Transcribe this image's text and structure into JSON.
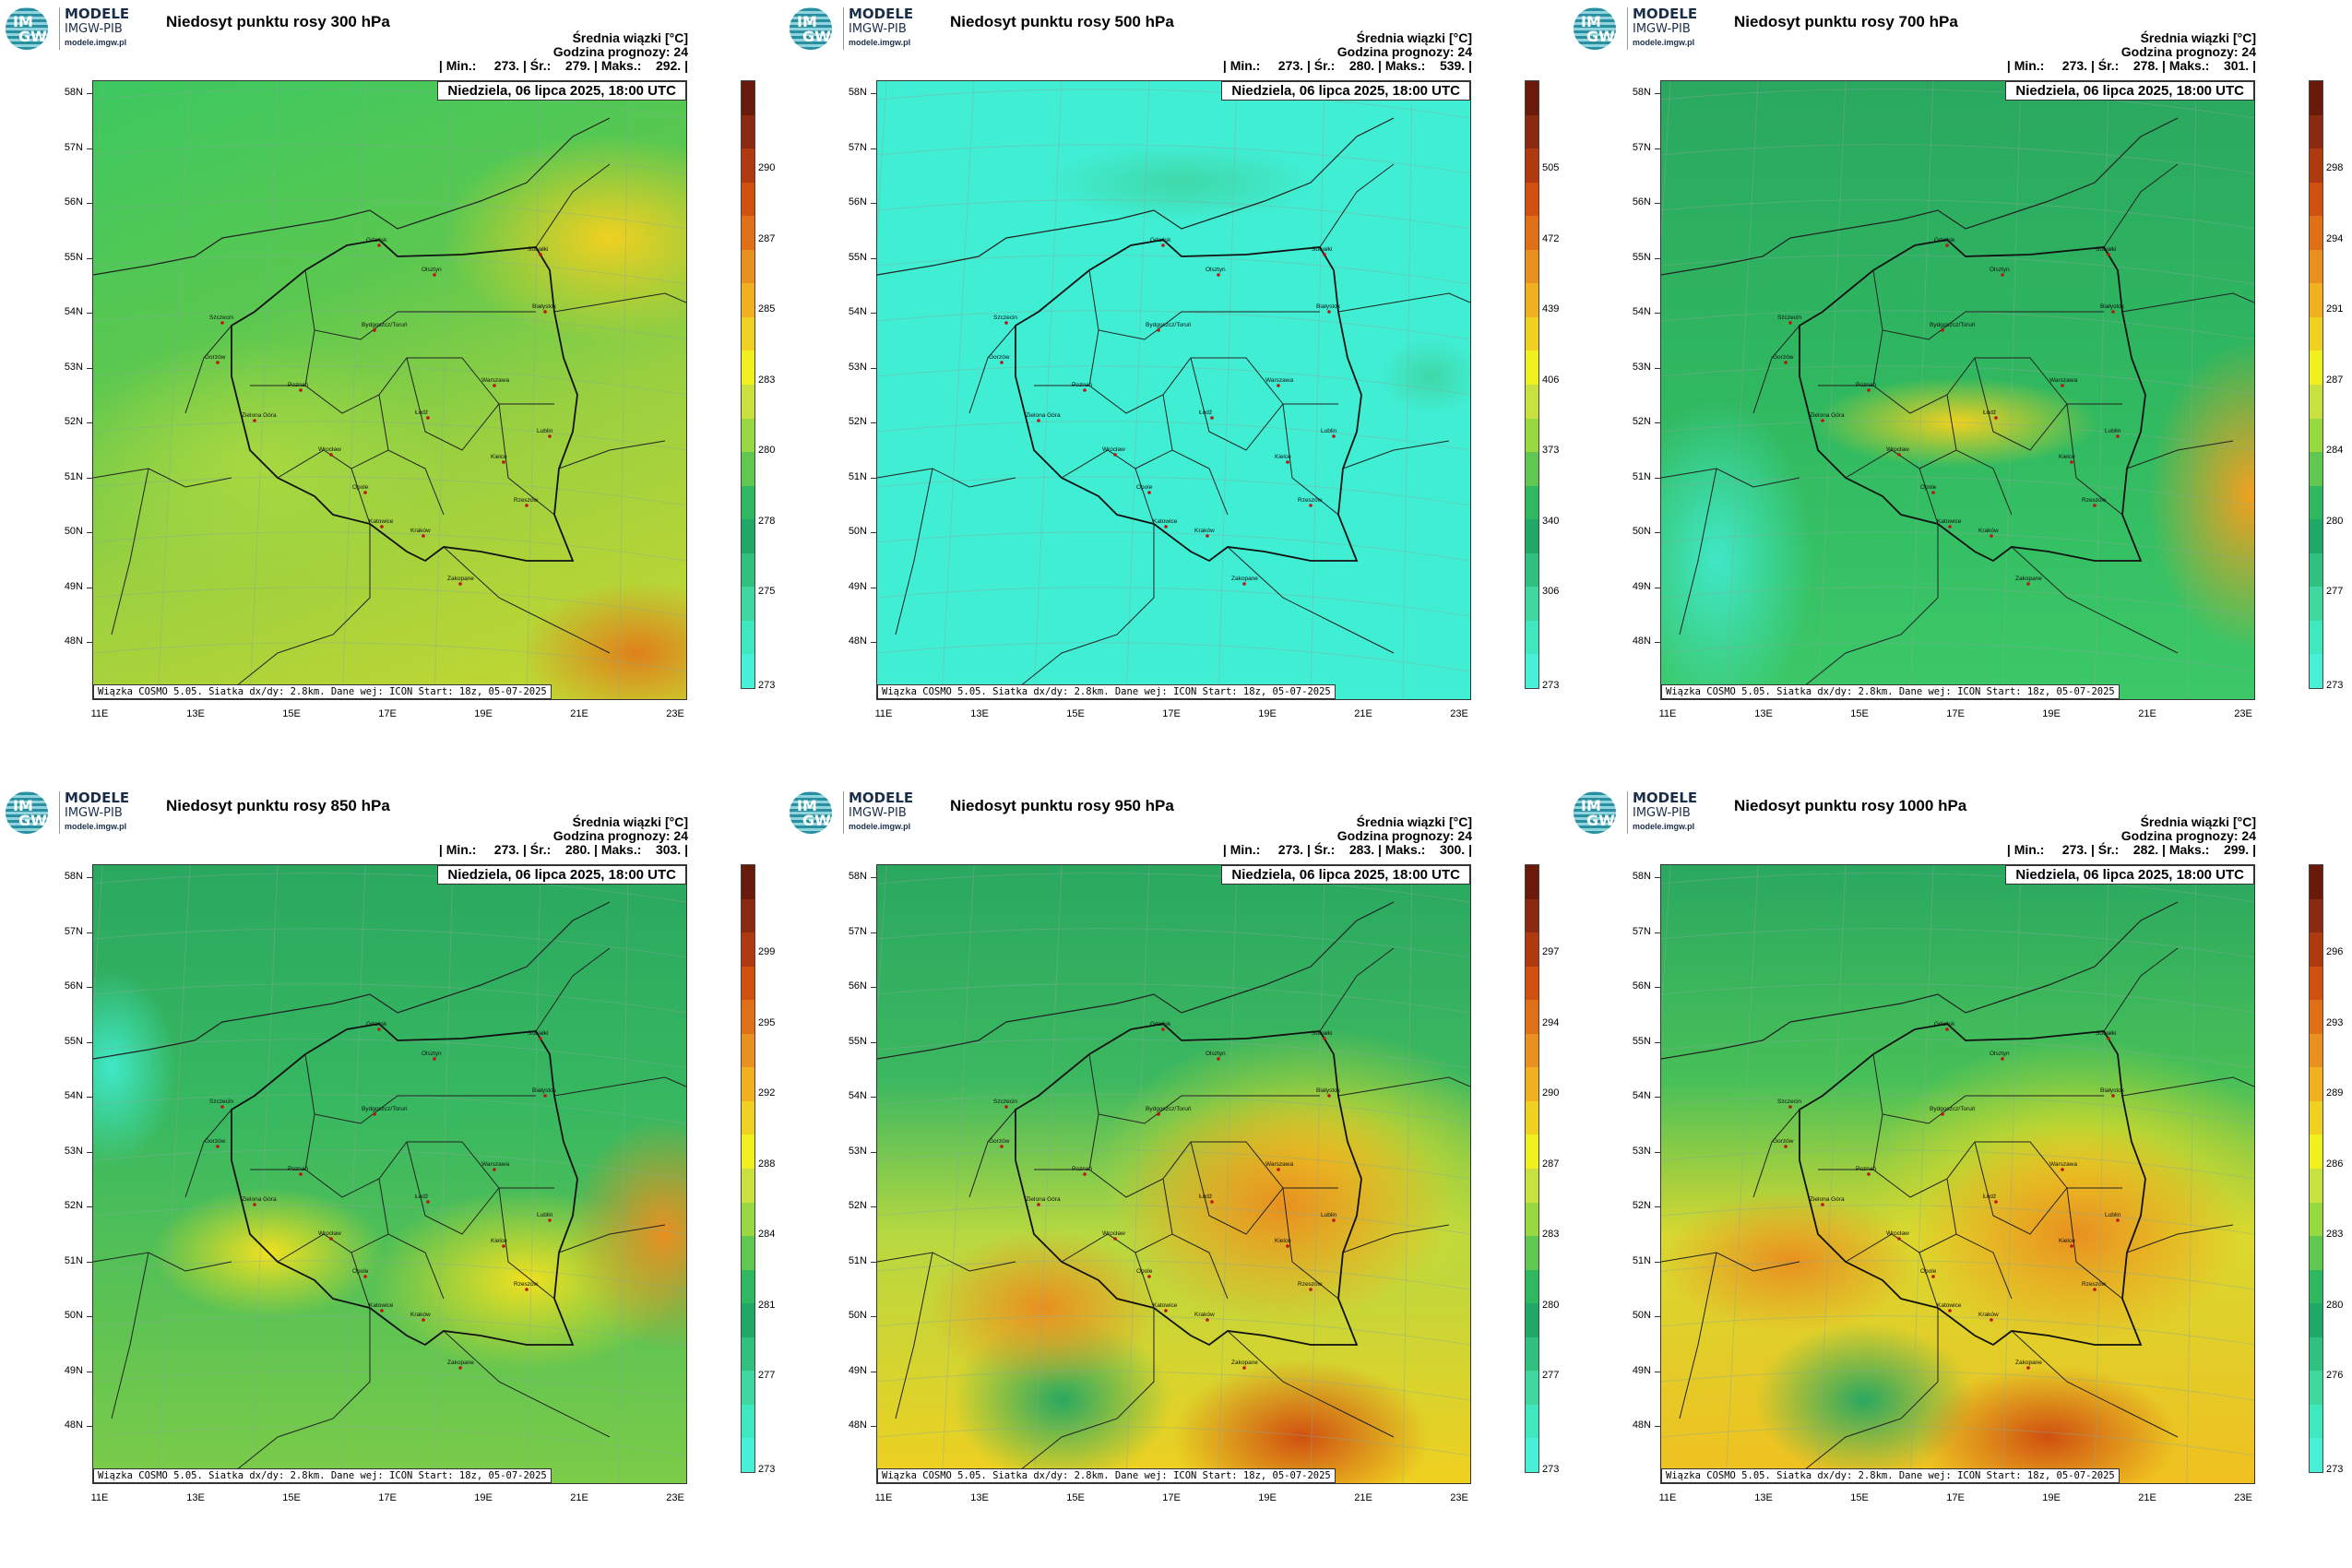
{
  "logo": {
    "title": "MODELE",
    "subtitle": "IMGW-PIB",
    "url": "modele.imgw.pl",
    "mark_top": "IM",
    "mark_bottom": "GW"
  },
  "common": {
    "info_line1": "Średnia wiązki [°C]",
    "info_line2": "Godzina prognozy: 24",
    "date": "Niedziela, 06 lipca 2025, 18:00 UTC",
    "footer": "Wiązka COSMO 5.05. Siatka dx/dy: 2.8km. Dane wej: ICON Start: 18z, 05-07-2025",
    "lat_labels": [
      "58N",
      "57N",
      "56N",
      "55N",
      "54N",
      "53N",
      "52N",
      "51N",
      "50N",
      "49N",
      "48N"
    ],
    "lon_labels": [
      "11E",
      "13E",
      "15E",
      "17E",
      "19E",
      "21E",
      "23E"
    ],
    "cities": [
      "Gdańsk",
      "Olsztyn",
      "Suwałki",
      "Białystok",
      "Szczecin",
      "Bydgoszcz/Toruń",
      "Gorzów",
      "Poznań",
      "Warszawa",
      "Zielona Góra",
      "Łódź",
      "Lublin",
      "Wrocław",
      "Kielce",
      "Opole",
      "Rzeszów",
      "Katowice",
      "Kraków",
      "Zakopane"
    ]
  },
  "panels": [
    {
      "title": "Niedosyt punktu rosy 300 hPa",
      "stats": "| Min.:     273. | Śr.:    279. | Maks.:    292. |",
      "colorbar": [
        "290",
        "287",
        "285",
        "283",
        "280",
        "278",
        "275",
        "273"
      ],
      "palette": "p300"
    },
    {
      "title": "Niedosyt punktu rosy 500 hPa",
      "stats": "| Min.:     273. | Śr.:    280. | Maks.:    539. |",
      "colorbar": [
        "505",
        "472",
        "439",
        "406",
        "373",
        "340",
        "306",
        "273"
      ],
      "palette": "p500"
    },
    {
      "title": "Niedosyt punktu rosy 700 hPa",
      "stats": "| Min.:     273. | Śr.:    278. | Maks.:    301. |",
      "colorbar": [
        "298",
        "294",
        "291",
        "287",
        "284",
        "280",
        "277",
        "273"
      ],
      "palette": "p700"
    },
    {
      "title": "Niedosyt punktu rosy 850 hPa",
      "stats": "| Min.:     273. | Śr.:    280. | Maks.:    303. |",
      "colorbar": [
        "299",
        "295",
        "292",
        "288",
        "284",
        "281",
        "277",
        "273"
      ],
      "palette": "p850"
    },
    {
      "title": "Niedosyt punktu rosy 950 hPa",
      "stats": "| Min.:     273. | Śr.:    283. | Maks.:    300. |",
      "colorbar": [
        "297",
        "294",
        "290",
        "287",
        "283",
        "280",
        "277",
        "273"
      ],
      "palette": "p950"
    },
    {
      "title": "Niedosyt punktu rosy 1000 hPa",
      "stats": "| Min.:     273. | Śr.:    282. | Maks.:    299. |",
      "colorbar": [
        "296",
        "293",
        "289",
        "286",
        "283",
        "280",
        "276",
        "273"
      ],
      "palette": "p1000"
    }
  ],
  "colors": {
    "cyan": "#3ff0d8",
    "green_dark": "#1aa860",
    "green": "#3cc860",
    "yellow_green": "#a8d840",
    "yellow": "#f0e020",
    "orange": "#e8a020",
    "red_orange": "#d85010",
    "dark_red": "#6a1a0a"
  }
}
